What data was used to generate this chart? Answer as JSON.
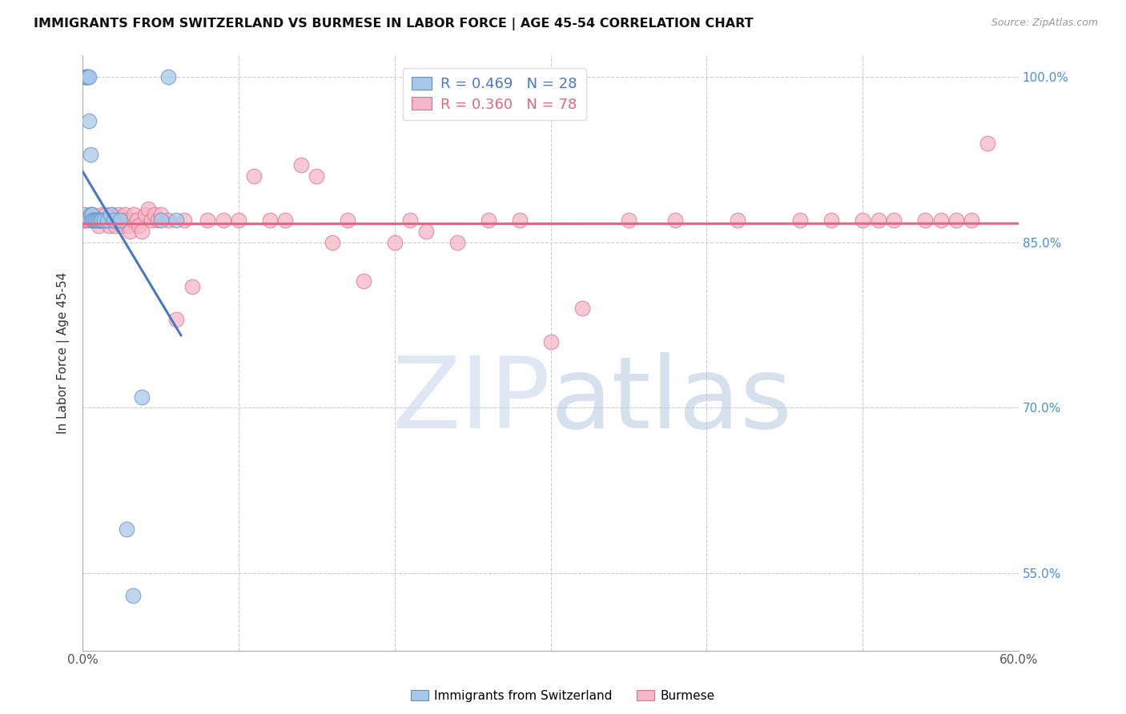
{
  "title": "IMMIGRANTS FROM SWITZERLAND VS BURMESE IN LABOR FORCE | AGE 45-54 CORRELATION CHART",
  "source": "Source: ZipAtlas.com",
  "ylabel": "In Labor Force | Age 45-54",
  "xlim": [
    0.0,
    0.6
  ],
  "ylim": [
    0.48,
    1.02
  ],
  "xtick_positions": [
    0.0,
    0.1,
    0.2,
    0.3,
    0.4,
    0.5,
    0.6
  ],
  "xticklabels": [
    "0.0%",
    "",
    "",
    "",
    "",
    "",
    "60.0%"
  ],
  "ytick_positions": [
    0.55,
    0.7,
    0.85,
    1.0
  ],
  "ytick_labels": [
    "55.0%",
    "70.0%",
    "85.0%",
    "100.0%"
  ],
  "swiss_R": 0.469,
  "swiss_N": 28,
  "burmese_R": 0.36,
  "burmese_N": 78,
  "swiss_color": "#a8c8e8",
  "burmese_color": "#f5b8c8",
  "swiss_edge_color": "#6090c8",
  "burmese_edge_color": "#e07090",
  "swiss_line_color": "#4878c8",
  "burmese_line_color": "#e06880",
  "swiss_x": [
    0.001,
    0.002,
    0.002,
    0.003,
    0.003,
    0.004,
    0.004,
    0.005,
    0.005,
    0.006,
    0.006,
    0.007,
    0.008,
    0.009,
    0.01,
    0.011,
    0.012,
    0.014,
    0.016,
    0.018,
    0.02,
    0.024,
    0.028,
    0.032,
    0.038,
    0.05,
    0.055,
    0.06
  ],
  "swiss_y": [
    0.875,
    1.0,
    1.0,
    1.0,
    1.0,
    1.0,
    0.96,
    0.93,
    0.875,
    0.875,
    0.87,
    0.87,
    0.87,
    0.87,
    0.87,
    0.87,
    0.87,
    0.87,
    0.87,
    0.875,
    0.87,
    0.87,
    0.59,
    0.53,
    0.71,
    0.87,
    1.0,
    0.87
  ],
  "burmese_x": [
    0.001,
    0.002,
    0.003,
    0.004,
    0.005,
    0.006,
    0.006,
    0.007,
    0.008,
    0.009,
    0.01,
    0.011,
    0.012,
    0.013,
    0.014,
    0.015,
    0.016,
    0.017,
    0.018,
    0.019,
    0.02,
    0.021,
    0.022,
    0.023,
    0.024,
    0.025,
    0.026,
    0.027,
    0.028,
    0.029,
    0.03,
    0.032,
    0.033,
    0.035,
    0.036,
    0.038,
    0.04,
    0.042,
    0.044,
    0.046,
    0.048,
    0.05,
    0.055,
    0.06,
    0.065,
    0.07,
    0.08,
    0.09,
    0.1,
    0.11,
    0.12,
    0.13,
    0.14,
    0.15,
    0.16,
    0.17,
    0.18,
    0.2,
    0.21,
    0.22,
    0.24,
    0.26,
    0.28,
    0.3,
    0.32,
    0.35,
    0.38,
    0.42,
    0.46,
    0.48,
    0.5,
    0.51,
    0.52,
    0.54,
    0.55,
    0.56,
    0.57,
    0.58
  ],
  "burmese_y": [
    0.87,
    0.87,
    0.87,
    0.87,
    0.875,
    0.875,
    0.87,
    0.87,
    0.87,
    0.87,
    0.865,
    0.87,
    0.875,
    0.87,
    0.87,
    0.875,
    0.87,
    0.865,
    0.87,
    0.875,
    0.87,
    0.865,
    0.87,
    0.875,
    0.87,
    0.865,
    0.87,
    0.875,
    0.87,
    0.865,
    0.86,
    0.87,
    0.875,
    0.87,
    0.865,
    0.86,
    0.875,
    0.88,
    0.87,
    0.875,
    0.87,
    0.875,
    0.87,
    0.78,
    0.87,
    0.81,
    0.87,
    0.87,
    0.87,
    0.91,
    0.87,
    0.87,
    0.92,
    0.91,
    0.85,
    0.87,
    0.815,
    0.85,
    0.87,
    0.86,
    0.85,
    0.87,
    0.87,
    0.76,
    0.79,
    0.87,
    0.87,
    0.87,
    0.87,
    0.87,
    0.87,
    0.87,
    0.87,
    0.87,
    0.87,
    0.87,
    0.87,
    0.94
  ],
  "watermark_zip_color": "#c8d8ec",
  "watermark_atlas_color": "#b0c4dc"
}
